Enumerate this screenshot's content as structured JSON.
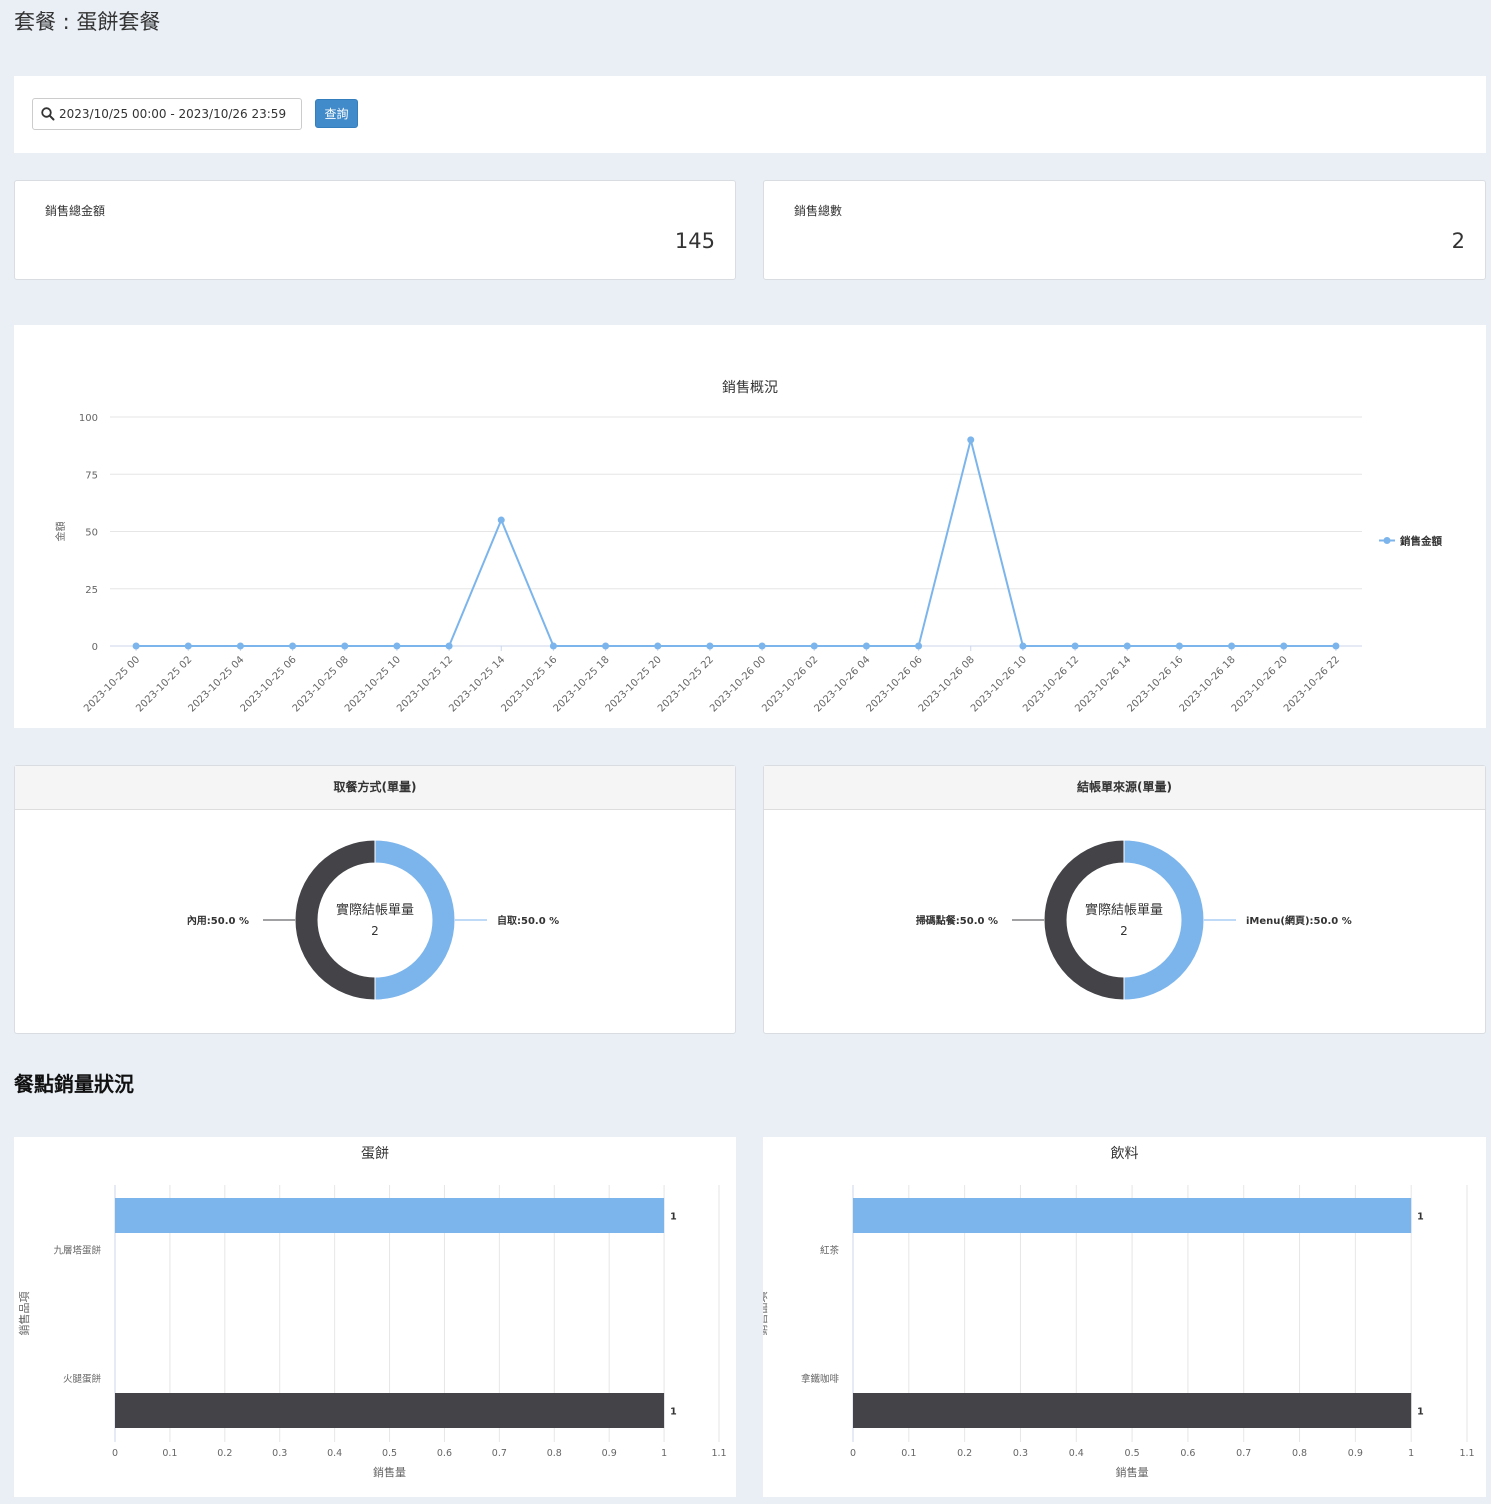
{
  "page": {
    "title": "套餐 : 蛋餅套餐"
  },
  "filter": {
    "date_range": "2023/10/25 00:00 - 2023/10/26 23:59",
    "query_label": "查詢"
  },
  "stats": {
    "total_amount_label": "銷售總金額",
    "total_amount_value": "145",
    "total_count_label": "銷售總數",
    "total_count_value": "2"
  },
  "sales_chart": {
    "chart_data": {
      "type": "line",
      "title": "銷售概況",
      "ylabel": "金額",
      "xlabel": "",
      "ylim": [
        0,
        100
      ],
      "yticks": [
        0,
        25,
        50,
        75,
        100
      ],
      "grid": true,
      "legend_position": "right",
      "x": [
        "2023-10-25 00",
        "2023-10-25 02",
        "2023-10-25 04",
        "2023-10-25 06",
        "2023-10-25 08",
        "2023-10-25 10",
        "2023-10-25 12",
        "2023-10-25 14",
        "2023-10-25 16",
        "2023-10-25 18",
        "2023-10-25 20",
        "2023-10-25 22",
        "2023-10-26 00",
        "2023-10-26 02",
        "2023-10-26 04",
        "2023-10-26 06",
        "2023-10-26 08",
        "2023-10-26 10",
        "2023-10-26 12",
        "2023-10-26 14",
        "2023-10-26 16",
        "2023-10-26 18",
        "2023-10-26 20",
        "2023-10-26 22"
      ],
      "series": [
        {
          "name": "銷售金額",
          "color": "#7cb5ec",
          "values": [
            0,
            0,
            0,
            0,
            0,
            0,
            0,
            55,
            0,
            0,
            0,
            0,
            0,
            0,
            0,
            0,
            90,
            0,
            0,
            0,
            0,
            0,
            0,
            0
          ]
        }
      ]
    }
  },
  "pie_charts": [
    {
      "header": "取餐方式(單量)",
      "center_label": "實際結帳單量",
      "center_value": "2",
      "chart_data": {
        "type": "pie",
        "slices": [
          {
            "label": "自取:50.0 %",
            "value": 50,
            "color": "#7cb5ec"
          },
          {
            "label": "內用:50.0 %",
            "value": 50,
            "color": "#434348"
          }
        ]
      }
    },
    {
      "header": "結帳單來源(單量)",
      "center_label": "實際結帳單量",
      "center_value": "2",
      "chart_data": {
        "type": "pie",
        "slices": [
          {
            "label": "iMenu(網頁):50.0 %",
            "value": 50,
            "color": "#7cb5ec"
          },
          {
            "label": "掃碼點餐:50.0 %",
            "value": 50,
            "color": "#434348"
          }
        ]
      }
    }
  ],
  "item_section": {
    "title": "餐點銷量狀況"
  },
  "bar_charts": [
    {
      "chart_data": {
        "type": "bar",
        "orientation": "horizontal",
        "title": "蛋餅",
        "xlabel": "銷售量",
        "ylabel": "銷售品項",
        "xlim": [
          0,
          1.1
        ],
        "xticks": [
          0,
          0.1,
          0.2,
          0.3,
          0.4,
          0.5,
          0.6,
          0.7,
          0.8,
          0.9,
          1,
          1.1
        ],
        "categories": [
          "九層塔蛋餅",
          "火腿蛋餅"
        ],
        "values": [
          1,
          1
        ],
        "colors": [
          "#7cb5ec",
          "#434348"
        ]
      }
    },
    {
      "chart_data": {
        "type": "bar",
        "orientation": "horizontal",
        "title": "飲料",
        "xlabel": "銷售量",
        "ylabel": "銷售品項",
        "xlim": [
          0,
          1.1
        ],
        "xticks": [
          0,
          0.1,
          0.2,
          0.3,
          0.4,
          0.5,
          0.6,
          0.7,
          0.8,
          0.9,
          1,
          1.1
        ],
        "categories": [
          "紅茶",
          "拿鐵咖啡"
        ],
        "values": [
          1,
          1
        ],
        "colors": [
          "#7cb5ec",
          "#434348"
        ]
      }
    }
  ]
}
